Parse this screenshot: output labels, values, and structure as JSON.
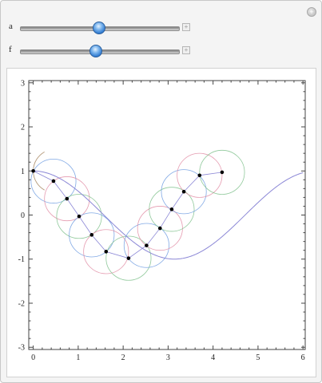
{
  "controls": {
    "slider_a": {
      "label": "a",
      "value_fraction": 0.5
    },
    "slider_f": {
      "label": "f",
      "value_fraction": 0.48
    }
  },
  "icons": {
    "corner": "plus-circle-icon",
    "slider_plus": "plus-box-icon"
  },
  "colors": {
    "curve": "#8b87d6",
    "point": "#000000",
    "circle_colors": [
      "#6b9ae0",
      "#e08aa2",
      "#7cc08a",
      "#b59a7a"
    ]
  },
  "chart_data": {
    "type": "line",
    "title": "",
    "xlabel": "",
    "ylabel": "",
    "xlim": [
      -0.1,
      6.05
    ],
    "ylim": [
      -3.05,
      3.05
    ],
    "xticks": [
      "0",
      "1",
      "2",
      "3",
      "4",
      "5",
      "6"
    ],
    "yticks": [
      "-3",
      "-2",
      "-1",
      "0",
      "1",
      "2",
      "3"
    ],
    "curve_function": "cos(x)",
    "curve_range": [
      0,
      6
    ],
    "points": [
      [
        0,
        1
      ],
      [
        0.45,
        0.77
      ],
      [
        0.75,
        0.37
      ],
      [
        1.02,
        -0.03
      ],
      [
        1.3,
        -0.45
      ],
      [
        1.62,
        -0.83
      ],
      [
        2.12,
        -0.98
      ],
      [
        2.52,
        -0.69
      ],
      [
        2.82,
        -0.3
      ],
      [
        3.08,
        0.13
      ],
      [
        3.35,
        0.53
      ],
      [
        3.7,
        0.9
      ],
      [
        4.2,
        0.97
      ]
    ],
    "circle_radius": 0.5,
    "arc": {
      "center": [
        0,
        1
      ],
      "radius": 0.5,
      "start_deg": 60,
      "end_deg": 300
    },
    "grid": false
  }
}
